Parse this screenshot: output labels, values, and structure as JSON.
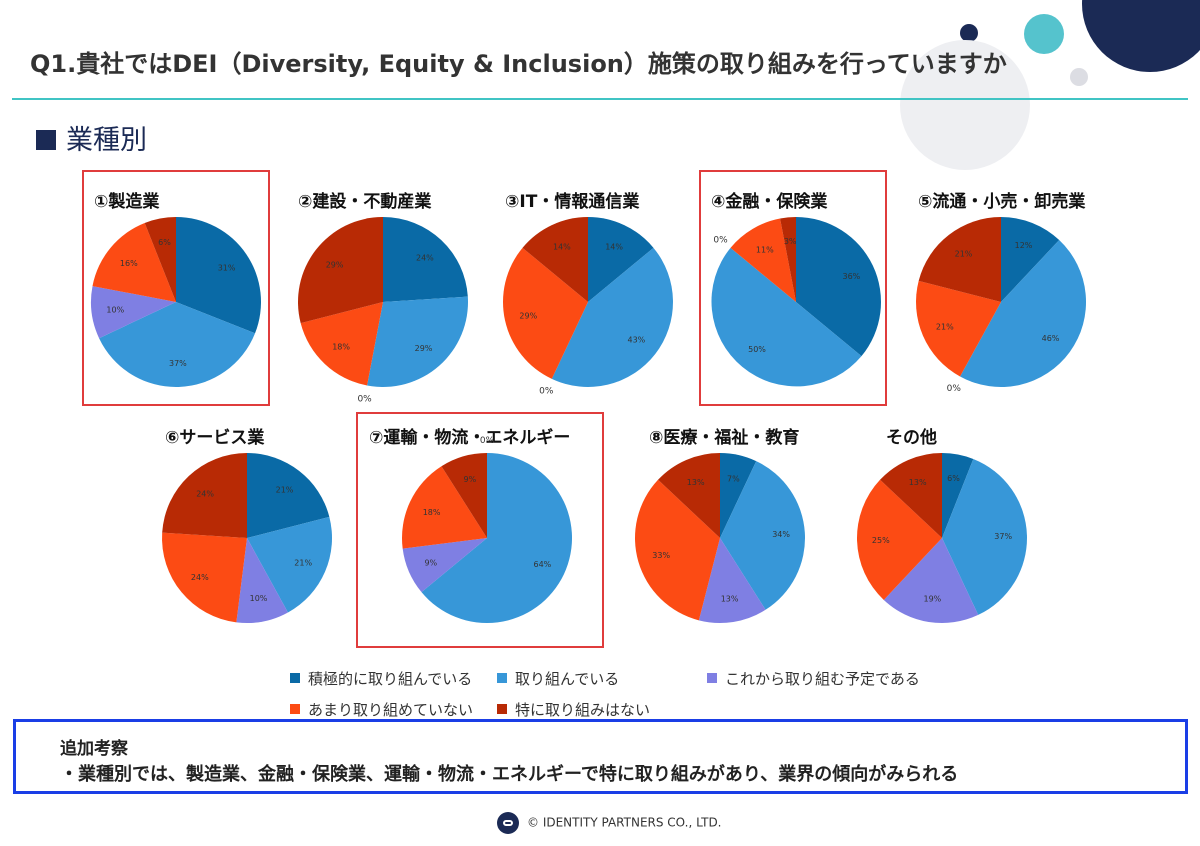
{
  "page": {
    "title": "Q1.貴社ではDEI（Diversity, Equity & Inclusion）施策の取り組みを行っていますか",
    "section": "業種別",
    "note_title": "追加考察",
    "note_text": "・業種別では、製造業、金融・保険業、運輸・物流・エネルギーで特に取り組みがあり、業界の傾向がみられる",
    "footer": "© IDENTITY PARTNERS CO., LTD."
  },
  "colors": [
    "#0a6aa6",
    "#3797d8",
    "#7f7fe3",
    "#fc4b14",
    "#b82a05"
  ],
  "legend": [
    "積極的に取り組んでいる",
    "取り組んでいる",
    "これから取り組む予定である",
    "あまり取り組めていない",
    "特に取り組みはない"
  ],
  "chart_data": [
    {
      "type": "pie",
      "title": "①製造業",
      "labels": [
        "積極的に取り組んでいる",
        "取り組んでいる",
        "これから取り組む予定である",
        "あまり取り組めていない",
        "特に取り組みはない"
      ],
      "values": [
        31,
        37,
        10,
        16,
        6
      ],
      "value_labels": [
        "31%",
        "37%",
        "10%",
        "16%",
        "6%"
      ]
    },
    {
      "type": "pie",
      "title": "②建設・不動産業",
      "labels": [
        "積極的に取り組んでいる",
        "取り組んでいる",
        "これから取り組む予定である",
        "あまり取り組めていない",
        "特に取り組みはない"
      ],
      "values": [
        24,
        29,
        0,
        18,
        29
      ],
      "value_labels": [
        "24%",
        "29%",
        "0%",
        "18%",
        "29%"
      ]
    },
    {
      "type": "pie",
      "title": "③IT・情報通信業",
      "labels": [
        "積極的に取り組んでいる",
        "取り組んでいる",
        "これから取り組む予定である",
        "あまり取り組めていない",
        "特に取り組みはない"
      ],
      "values": [
        14,
        43,
        0,
        29,
        14
      ],
      "value_labels": [
        "14%",
        "43%",
        "0%",
        "29%",
        "14%"
      ]
    },
    {
      "type": "pie",
      "title": "④金融・保険業",
      "labels": [
        "積極的に取り組んでいる",
        "取り組んでいる",
        "これから取り組む予定である",
        "あまり取り組めていない",
        "特に取り組みはない"
      ],
      "values": [
        36,
        50,
        0,
        11,
        3
      ],
      "value_labels": [
        "36%",
        "50%",
        "0%",
        "11%",
        "3%"
      ]
    },
    {
      "type": "pie",
      "title": "⑤流通・小売・卸売業",
      "labels": [
        "積極的に取り組んでいる",
        "取り組んでいる",
        "これから取り組む予定である",
        "あまり取り組めていない",
        "特に取り組みはない"
      ],
      "values": [
        12,
        46,
        0,
        21,
        21
      ],
      "value_labels": [
        "12%",
        "46%",
        "0%",
        "21%",
        "21%"
      ]
    },
    {
      "type": "pie",
      "title": "⑥サービス業",
      "labels": [
        "積極的に取り組んでいる",
        "取り組んでいる",
        "これから取り組む予定である",
        "あまり取り組めていない",
        "特に取り組みはない"
      ],
      "values": [
        21,
        21,
        10,
        24,
        24
      ],
      "value_labels": [
        "21%",
        "21%",
        "10%",
        "24%",
        "24%"
      ]
    },
    {
      "type": "pie",
      "title": "⑦運輸・物流・エネルギー",
      "labels": [
        "積極的に取り組んでいる",
        "取り組んでいる",
        "これから取り組む予定である",
        "あまり取り組めていない",
        "特に取り組みはない"
      ],
      "values": [
        0,
        64,
        9,
        18,
        9
      ],
      "value_labels": [
        "0%",
        "64%",
        "9%",
        "18%",
        "9%"
      ]
    },
    {
      "type": "pie",
      "title": "⑧医療・福祉・教育",
      "labels": [
        "積極的に取り組んでいる",
        "取り組んでいる",
        "これから取り組む予定である",
        "あまり取り組めていない",
        "特に取り組みはない"
      ],
      "values": [
        7,
        34,
        13,
        33,
        13
      ],
      "value_labels": [
        "7%",
        "34%",
        "13%",
        "33%",
        "13%"
      ]
    },
    {
      "type": "pie",
      "title": "その他",
      "labels": [
        "積極的に取り組んでいる",
        "取り組んでいる",
        "これから取り組む予定である",
        "あまり取り組めていない",
        "特に取り組みはない"
      ],
      "values": [
        6,
        37,
        19,
        25,
        13
      ],
      "value_labels": [
        "6%",
        "37%",
        "19%",
        "25%",
        "13%"
      ]
    }
  ]
}
